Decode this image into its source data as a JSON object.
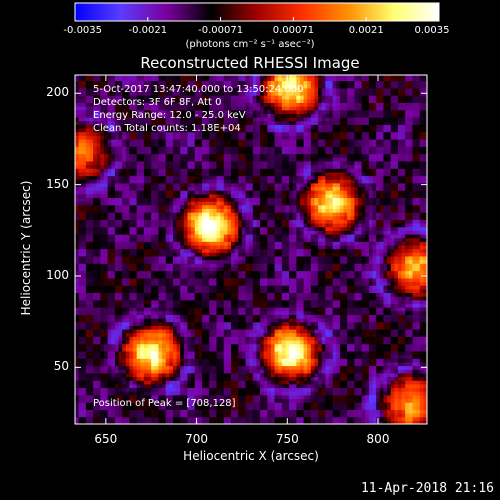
{
  "chart_data": {
    "type": "heatmap",
    "title": "Reconstructed RHESSI Image",
    "xlabel": "Heliocentric X (arcsec)",
    "ylabel": "Heliocentric Y (arcsec)",
    "xlim": [
      633,
      827
    ],
    "ylim": [
      19,
      210
    ],
    "x_ticks": [
      650,
      700,
      750,
      800
    ],
    "y_ticks": [
      50,
      100,
      150,
      200
    ],
    "colorbar": {
      "min": -0.0035,
      "max": 0.0035,
      "tick_labels": [
        "-0.0035",
        "-0.0021",
        "-0.00071",
        "0.00071",
        "0.0021",
        "0.0035"
      ],
      "units": "(photons cm⁻² s⁻¹ asec⁻²)",
      "colormap": [
        "#0000ff",
        "#5a3cff",
        "#7a00a0",
        "#000000",
        "#a00000",
        "#ff3000",
        "#ff9000",
        "#ffff70",
        "#ffffff"
      ]
    },
    "sources": [
      {
        "x": 708,
        "y": 128,
        "peak": 0.0035
      },
      {
        "x": 775,
        "y": 140,
        "peak": 0.003
      },
      {
        "x": 675,
        "y": 58,
        "peak": 0.0031
      },
      {
        "x": 752,
        "y": 58,
        "peak": 0.0031
      },
      {
        "x": 752,
        "y": 203,
        "peak": 0.0028
      },
      {
        "x": 820,
        "y": 105,
        "peak": 0.002
      },
      {
        "x": 818,
        "y": 30,
        "peak": 0.002
      },
      {
        "x": 636,
        "y": 168,
        "peak": 0.0016
      }
    ],
    "background_level": -0.0012
  },
  "annotations": {
    "time_range": "5-Oct-2017 13:47:40.000 to 13:50:24.000",
    "detectors": "Detectors: 3F 6F 8F, Att 0",
    "energy": "Energy Range: 12.0 - 25.0 keV",
    "method": "Clean     Total counts: 1.18E+04",
    "peak": "Position of Peak = [708,128]"
  },
  "datestamp": "11-Apr-2018 21:16"
}
